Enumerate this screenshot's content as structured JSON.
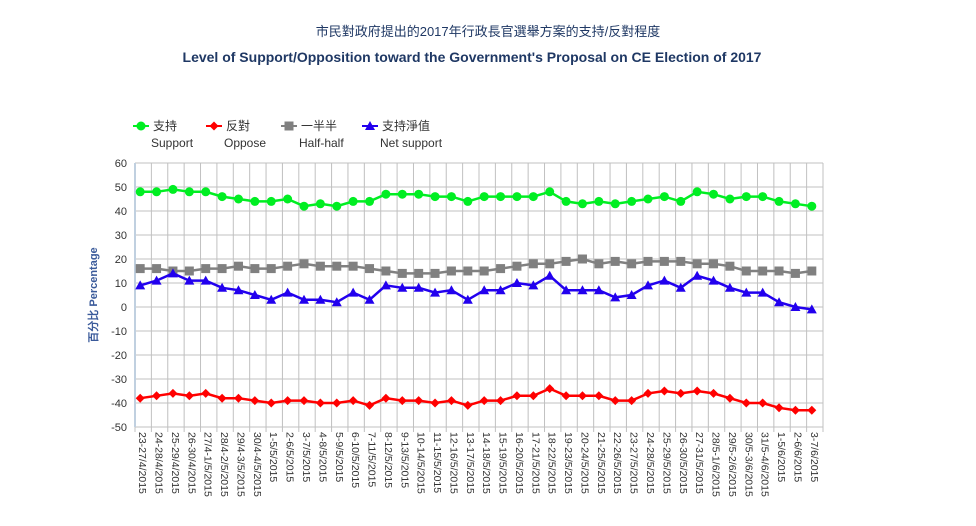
{
  "chart_data": {
    "type": "line",
    "title": "市民對政府提出的2017年行政長官選舉方案的支持/反對程度",
    "subtitle": "Level of Support/Opposition toward the Government's Proposal on CE Election of 2017",
    "xlabel": "",
    "ylabel": "百分比 Percentage",
    "ylim": [
      -50,
      60
    ],
    "yticks": [
      60,
      50,
      40,
      30,
      20,
      10,
      0,
      -10,
      -20,
      -30,
      -40,
      -50
    ],
    "grid": true,
    "legend_position": "top-left",
    "categories": [
      "23-27/4/2015",
      "24-28/4/2015",
      "25-29/4/2015",
      "26-30/4/2015",
      "27/4-1/5/2015",
      "28/4-2/5/2015",
      "29/4-3/5/2015",
      "30/4-4/5/2015",
      "1-5/5/2015",
      "2-6/5/2015",
      "3-7/5/2015",
      "4-8/5/2015",
      "5-9/5/2015",
      "6-10/5/2015",
      "7-11/5/2015",
      "8-12/5/2015",
      "9-13/5/2015",
      "10-14/5/2015",
      "11-15/5/2015",
      "12-16/5/2015",
      "13-17/5/2015",
      "14-18/5/2015",
      "15-19/5/2015",
      "16-20/5/2015",
      "17-21/5/2015",
      "18-22/5/2015",
      "19-23/5/2015",
      "20-24/5/2015",
      "21-25/5/2015",
      "22-26/5/2015",
      "23-27/5/2015",
      "24-28/5/2015",
      "25-29/5/2015",
      "26-30/5/2015",
      "27-31/5/2015",
      "28/5-1/6/2015",
      "29/5-2/6/2015",
      "30/5-3/6/2015",
      "31/5-4/6/2015",
      "1-5/6/2015",
      "2-6/6/2015",
      "3-7/6/2015"
    ],
    "series": [
      {
        "name_zh": "支持",
        "name": "Support",
        "color": "#00ee22",
        "marker": "circle",
        "values": [
          48,
          48,
          49,
          48,
          48,
          46,
          45,
          44,
          44,
          45,
          42,
          43,
          42,
          44,
          44,
          47,
          47,
          47,
          46,
          46,
          44,
          46,
          46,
          46,
          46,
          48,
          44,
          43,
          44,
          43,
          44,
          45,
          46,
          44,
          48,
          47,
          45,
          46,
          46,
          44,
          43,
          42
        ]
      },
      {
        "name_zh": "反對",
        "name": "Oppose",
        "color": "#ff0000",
        "marker": "diamond",
        "values": [
          -38,
          -37,
          -36,
          -37,
          -36,
          -38,
          -38,
          -39,
          -40,
          -39,
          -39,
          -40,
          -40,
          -39,
          -41,
          -38,
          -39,
          -39,
          -40,
          -39,
          -41,
          -39,
          -39,
          -37,
          -37,
          -34,
          -37,
          -37,
          -37,
          -39,
          -39,
          -36,
          -35,
          -36,
          -35,
          -36,
          -38,
          -40,
          -40,
          -42,
          -43,
          -43
        ]
      },
      {
        "name_zh": "一半半",
        "name": "Half-half",
        "color": "#808080",
        "marker": "square",
        "values": [
          16,
          16,
          15,
          15,
          16,
          16,
          17,
          16,
          16,
          17,
          18,
          17,
          17,
          17,
          16,
          15,
          14,
          14,
          14,
          15,
          15,
          15,
          16,
          17,
          18,
          18,
          19,
          20,
          18,
          19,
          18,
          19,
          19,
          19,
          18,
          18,
          17,
          15,
          15,
          15,
          14,
          15
        ]
      },
      {
        "name_zh": "支持淨值",
        "name": "Net support",
        "color": "#2200ee",
        "marker": "triangle",
        "values": [
          9,
          11,
          14,
          11,
          11,
          8,
          7,
          5,
          3,
          6,
          3,
          3,
          2,
          6,
          3,
          9,
          8,
          8,
          6,
          7,
          3,
          7,
          7,
          10,
          9,
          13,
          7,
          7,
          7,
          4,
          5,
          9,
          11,
          8,
          13,
          11,
          8,
          6,
          6,
          2,
          0,
          -1
        ]
      }
    ]
  }
}
